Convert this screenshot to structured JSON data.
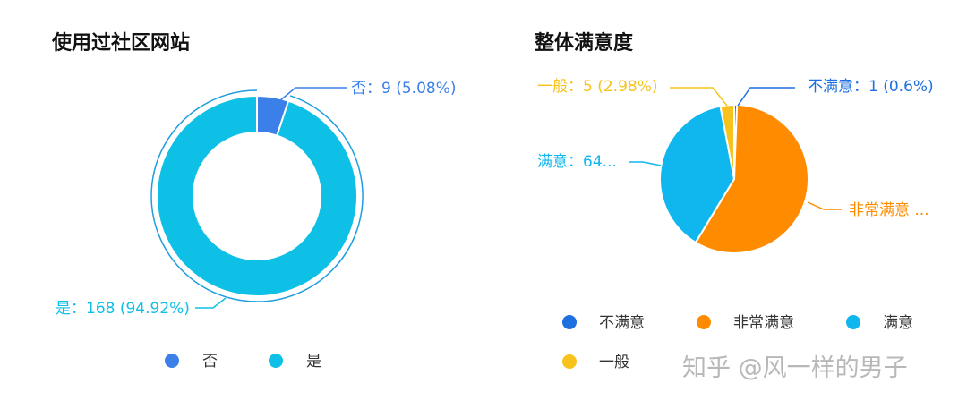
{
  "chart_data": [
    {
      "type": "pie",
      "title": "使用过社区网站",
      "slices": [
        {
          "name": "否",
          "value": 9,
          "percent": "5.08%",
          "label": "否：9 (5.08%)",
          "color": "#3B7FE8"
        },
        {
          "name": "是",
          "value": 168,
          "percent": "94.92%",
          "label": "是：168 (94.92%)",
          "color": "#0EC0E6"
        }
      ],
      "legend": [
        "否",
        "是"
      ],
      "legend_placement": "bottom"
    },
    {
      "type": "pie",
      "title": "整体满意度",
      "slices": [
        {
          "name": "不满意",
          "value": 1,
          "percent": "0.6%",
          "label": "不满意：1 (0.6%)",
          "color": "#1E6FE0"
        },
        {
          "name": "非常满意",
          "value": 97,
          "label": "非常满意 ...",
          "color": "#FF8C00"
        },
        {
          "name": "满意",
          "value": 64,
          "label": "满意：64...",
          "color": "#10B6EE"
        },
        {
          "name": "一般",
          "value": 5,
          "percent": "2.98%",
          "label": "一般：5 (2.98%)",
          "color": "#F7C21B"
        }
      ],
      "legend": [
        "不满意",
        "非常满意",
        "满意",
        "一般"
      ],
      "legend_placement": "bottom"
    }
  ],
  "watermark": "知乎 @风一样的男子"
}
